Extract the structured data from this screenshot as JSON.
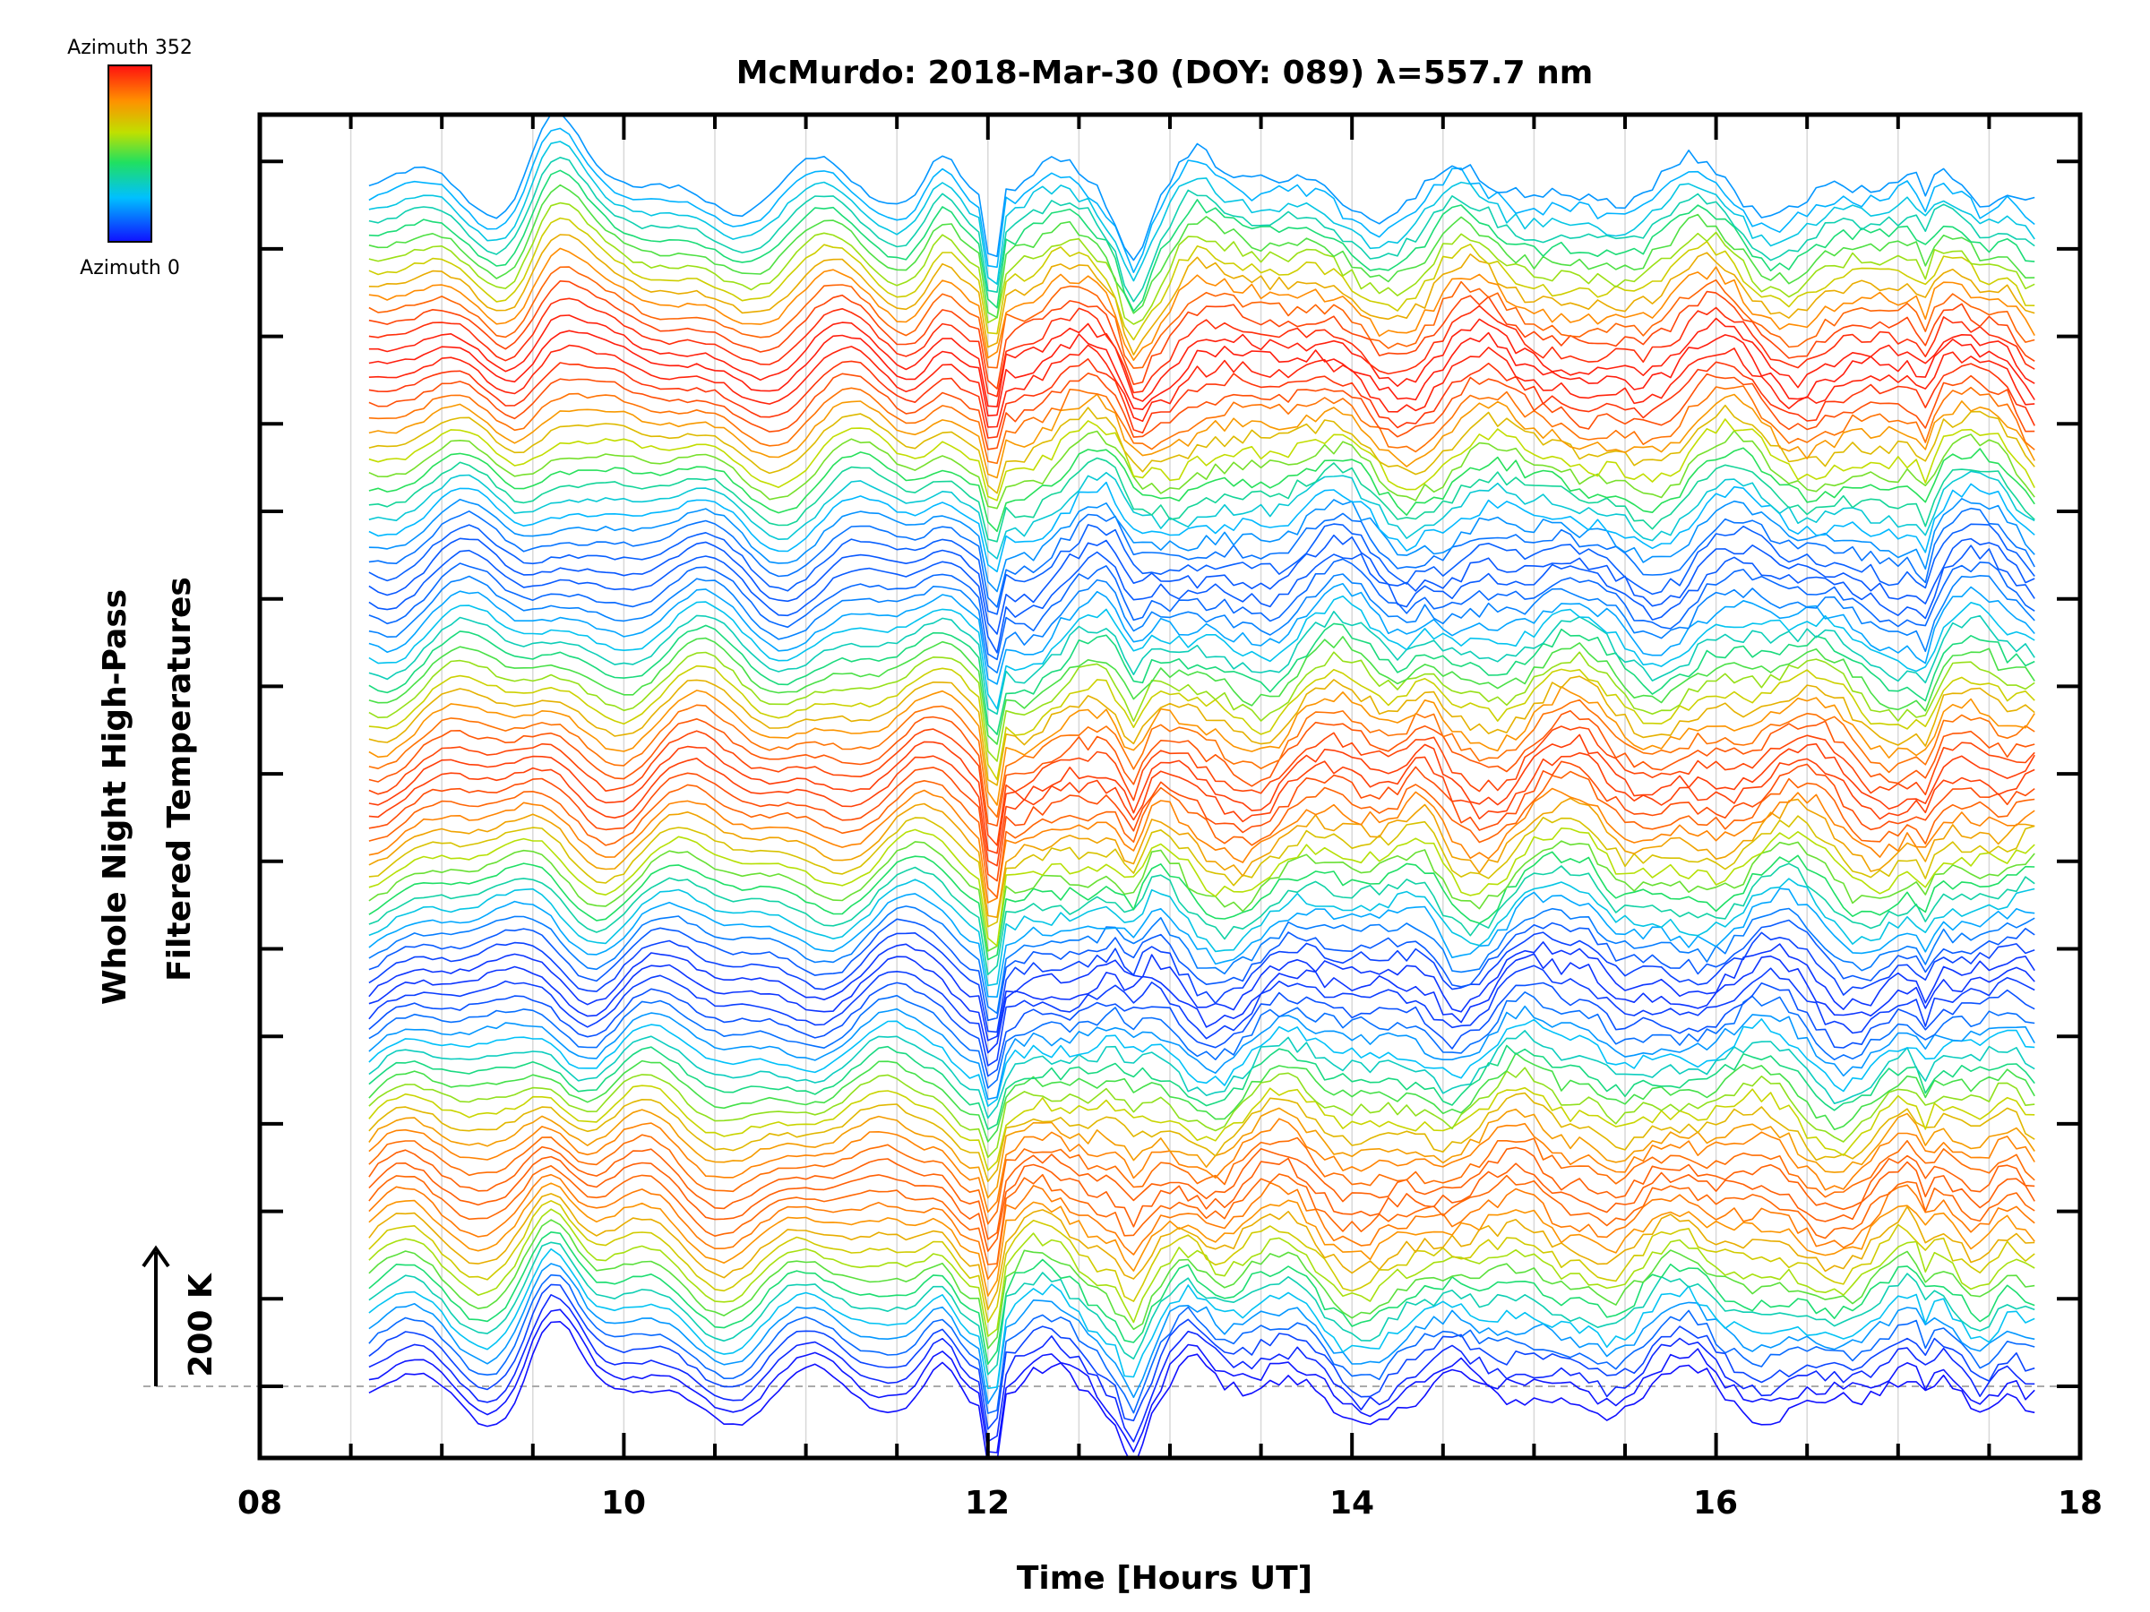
{
  "chart_data": {
    "type": "line",
    "title": "McMurdo: 2018-Mar-30 (DOY: 089) λ=557.7 nm",
    "xlabel": "Time [Hours UT]",
    "ylabel": [
      "Whole Night High-Pass",
      "Filtered Temperatures"
    ],
    "x_ticks": [
      "08",
      "10",
      "12",
      "14",
      "16",
      "18"
    ],
    "xlim": [
      8,
      18
    ],
    "scale_bar_label": "200 K",
    "colorbar": {
      "top_label": "Azimuth  352",
      "bottom_label": "Azimuth  0",
      "colormap": "rainbow"
    },
    "traces": {
      "count": 96,
      "azimuth_min": 0,
      "azimuth_max": 352,
      "azimuth_step": 3.7,
      "time_start": 8.6,
      "time_end": 17.75,
      "time_step": 0.05
    },
    "feature_times": [
      9.6,
      11.75,
      12.0,
      12.8,
      13.1,
      13.6,
      14.4,
      15.3,
      16.4,
      17.15,
      17.6
    ],
    "colors": {
      "axis": "#000000",
      "grid": "#d8d8d8",
      "baseline": "#aaaaaa"
    }
  }
}
